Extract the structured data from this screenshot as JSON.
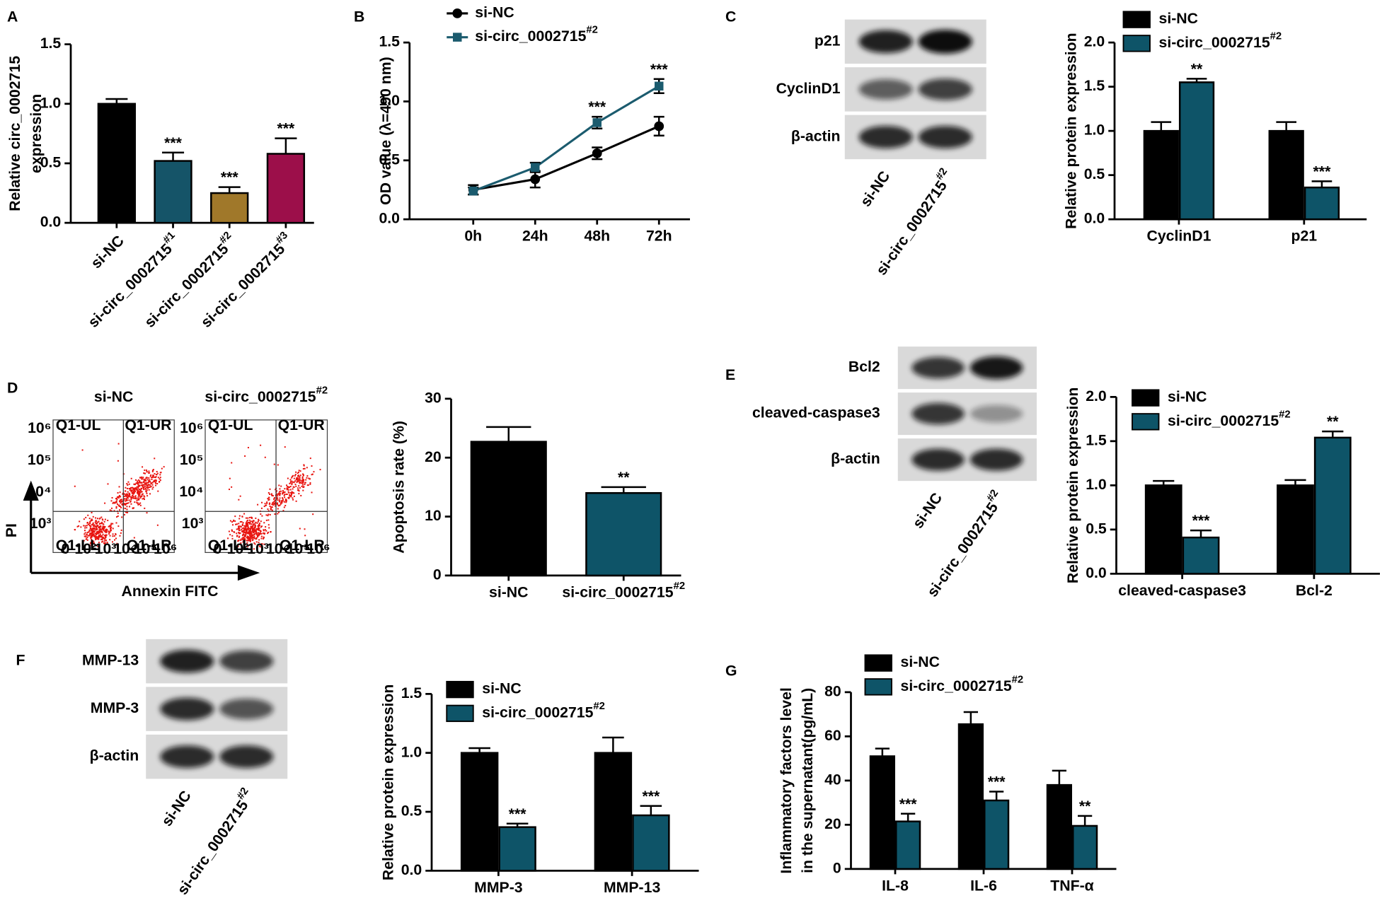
{
  "chart_data": [
    {
      "panel": "A",
      "type": "bar",
      "ylabel": [
        "Relative circ_0002715",
        "expression"
      ],
      "categories": [
        "si-NC",
        "si-circ_0002715#1",
        "si-circ_0002715#2",
        "si-circ_0002715#3"
      ],
      "values": [
        1.0,
        0.52,
        0.25,
        0.58
      ],
      "errors": [
        0.04,
        0.07,
        0.05,
        0.13
      ],
      "colors": [
        "#000000",
        "#155468",
        "#a0782a",
        "#9c0f4a"
      ],
      "significance": [
        null,
        "***",
        "***",
        "***"
      ],
      "ylim": [
        0,
        1.5
      ],
      "yticks": [
        {
          "value": 0,
          "label": "0.0"
        },
        0.5,
        {
          "value": 1,
          "label": "1.0"
        },
        1.5
      ]
    },
    {
      "panel": "B",
      "type": "line",
      "ylabel": "OD value (λ=490 nm)",
      "categories": [
        "0h",
        "24h",
        "48h",
        "72h"
      ],
      "series": [
        {
          "name": "si-NC",
          "color": "#000000",
          "marker": "circle",
          "values": [
            0.25,
            0.34,
            0.56,
            0.79
          ],
          "errors": [
            0.04,
            0.07,
            0.05,
            0.08
          ],
          "significance": [
            null,
            null,
            null,
            null
          ]
        },
        {
          "name": "si-circ_0002715#2",
          "color": "#1b5b6e",
          "marker": "square",
          "values": [
            0.24,
            0.44,
            0.82,
            1.13
          ],
          "errors": [
            0.03,
            0.04,
            0.05,
            0.06
          ],
          "significance": [
            null,
            null,
            "***",
            "***"
          ]
        }
      ],
      "ylim": [
        0,
        1.5
      ],
      "yticks": [
        {
          "value": 0,
          "label": "0.0"
        },
        0.5,
        {
          "value": 1,
          "label": "1.0"
        },
        1.5
      ]
    },
    {
      "type": "bar",
      "ylabel": "Relative protein expression",
      "categories": [
        "CyclinD1",
        "p21"
      ],
      "series": [
        {
          "name": "si-NC",
          "color": "#000000",
          "values": [
            1.0,
            1.0
          ],
          "errors": [
            0.1,
            0.1
          ],
          "significance": [
            null,
            null
          ]
        },
        {
          "name": "si-circ_0002715#2",
          "color": "#0e5468",
          "values": [
            1.55,
            0.36
          ],
          "errors": [
            0.04,
            0.07
          ],
          "significance": [
            "**",
            "***"
          ]
        }
      ],
      "ylim": [
        0,
        2
      ],
      "yticks": [
        {
          "value": 0,
          "label": "0.0"
        },
        0.5,
        {
          "value": 1,
          "label": "1.0"
        },
        1.5,
        {
          "value": 2,
          "label": "2.0"
        }
      ]
    },
    {
      "type": "bar",
      "ylabel": "Apoptosis rate (%)",
      "categories": [
        "si-NC",
        "si-circ_0002715#2"
      ],
      "values": [
        22.7,
        14.0
      ],
      "errors": [
        2.5,
        1.0
      ],
      "colors": [
        "#000000",
        "#0e5468"
      ],
      "significance": [
        null,
        "**"
      ],
      "ylim": [
        0,
        30
      ],
      "yticks": [
        0,
        10,
        20,
        30
      ]
    },
    {
      "type": "bar",
      "ylabel": "Relative protein expression",
      "categories": [
        "cleaved-caspase3",
        "Bcl-2"
      ],
      "series": [
        {
          "name": "si-NC",
          "color": "#000000",
          "values": [
            1.0,
            1.0
          ],
          "errors": [
            0.05,
            0.06
          ],
          "significance": [
            null,
            null
          ]
        },
        {
          "name": "si-circ_0002715#2",
          "color": "#0e5468",
          "values": [
            0.41,
            1.54
          ],
          "errors": [
            0.08,
            0.07
          ],
          "significance": [
            "***",
            "**"
          ]
        }
      ],
      "ylim": [
        0,
        2
      ],
      "yticks": [
        {
          "value": 0,
          "label": "0.0"
        },
        0.5,
        {
          "value": 1,
          "label": "1.0"
        },
        1.5,
        {
          "value": 2,
          "label": "2.0"
        }
      ]
    },
    {
      "type": "bar",
      "ylabel": "Relative protein expression",
      "categories": [
        "MMP-3",
        "MMP-13"
      ],
      "series": [
        {
          "name": "si-NC",
          "color": "#000000",
          "values": [
            1.0,
            1.0
          ],
          "errors": [
            0.04,
            0.13
          ],
          "significance": [
            null,
            null
          ]
        },
        {
          "name": "si-circ_0002715#2",
          "color": "#0e5468",
          "values": [
            0.37,
            0.47
          ],
          "errors": [
            0.03,
            0.08
          ],
          "significance": [
            "***",
            "***"
          ]
        }
      ],
      "ylim": [
        0,
        1.5
      ],
      "yticks": [
        {
          "value": 0,
          "label": "0.0"
        },
        0.5,
        {
          "value": 1,
          "label": "1.0"
        },
        1.5
      ]
    },
    {
      "panel": "G",
      "type": "bar",
      "ylabel": [
        "Inflammatory factors level",
        "in the supernatant(pg/mL)"
      ],
      "categories": [
        "IL-8",
        "IL-6",
        "TNF-α"
      ],
      "series": [
        {
          "name": "si-NC",
          "color": "#000000",
          "values": [
            51,
            65.5,
            38
          ],
          "errors": [
            3.5,
            5.5,
            6.5
          ],
          "significance": [
            null,
            null,
            null
          ]
        },
        {
          "name": "si-circ_0002715#2",
          "color": "#0e5468",
          "values": [
            21.5,
            31,
            19.5
          ],
          "errors": [
            3.5,
            4,
            4.5
          ],
          "significance": [
            "***",
            "***",
            "**"
          ]
        }
      ],
      "ylim": [
        0,
        80
      ],
      "yticks": [
        0,
        20,
        40,
        60,
        80
      ]
    }
  ],
  "blots": [
    {
      "panel": "C",
      "rows": [
        "p21",
        "CyclinD1",
        "β-actin"
      ],
      "lanes": [
        "si-NC",
        "si-circ_0002715#2"
      ]
    },
    {
      "panel": "E",
      "rows": [
        "Bcl2",
        "cleaved-caspase3",
        "β-actin"
      ],
      "lanes": [
        "si-NC",
        "si-circ_0002715#2"
      ]
    },
    {
      "panel": "F",
      "rows": [
        "MMP-13",
        "MMP-3",
        "β-actin"
      ],
      "lanes": [
        "si-NC",
        "si-circ_0002715#2"
      ]
    }
  ],
  "flow": {
    "panel": "D",
    "titles": [
      "si-NC",
      "si-circ_0002715#2"
    ],
    "ylabel": "PI",
    "xlabel": "Annexin FITC",
    "quadrants": [
      "Q1-UL",
      "Q1-UR",
      "Q1-LL",
      "Q1-LR"
    ],
    "xtick_labels": [
      "0",
      "10²",
      "10³",
      "10⁴",
      "10⁵",
      "10⁶"
    ],
    "ytick_labels": [
      "10³",
      "10⁴",
      "10⁵",
      "10⁶"
    ]
  }
}
